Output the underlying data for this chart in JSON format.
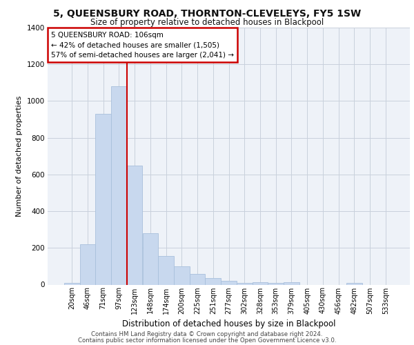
{
  "title": "5, QUEENSBURY ROAD, THORNTON-CLEVELEYS, FY5 1SW",
  "subtitle": "Size of property relative to detached houses in Blackpool",
  "xlabel": "Distribution of detached houses by size in Blackpool",
  "ylabel": "Number of detached properties",
  "bar_color": "#c8d8ee",
  "bar_edge_color": "#a8c0dc",
  "grid_color": "#c8d0dc",
  "background_color": "#eef2f8",
  "categories": [
    "20sqm",
    "46sqm",
    "71sqm",
    "97sqm",
    "123sqm",
    "148sqm",
    "174sqm",
    "200sqm",
    "225sqm",
    "251sqm",
    "277sqm",
    "302sqm",
    "328sqm",
    "353sqm",
    "379sqm",
    "405sqm",
    "430sqm",
    "456sqm",
    "482sqm",
    "507sqm",
    "533sqm"
  ],
  "values": [
    10,
    220,
    930,
    1080,
    650,
    280,
    155,
    100,
    60,
    35,
    22,
    8,
    12,
    8,
    12,
    0,
    0,
    0,
    8,
    0,
    0
  ],
  "property_bar_index": 3,
  "annotation_text": "5 QUEENSBURY ROAD: 106sqm\n← 42% of detached houses are smaller (1,505)\n57% of semi-detached houses are larger (2,041) →",
  "annotation_box_color": "#ffffff",
  "annotation_box_edge_color": "#cc0000",
  "red_line_color": "#cc0000",
  "footer_line1": "Contains HM Land Registry data © Crown copyright and database right 2024.",
  "footer_line2": "Contains public sector information licensed under the Open Government Licence v3.0.",
  "ylim": [
    0,
    1400
  ],
  "yticks": [
    0,
    200,
    400,
    600,
    800,
    1000,
    1200,
    1400
  ]
}
